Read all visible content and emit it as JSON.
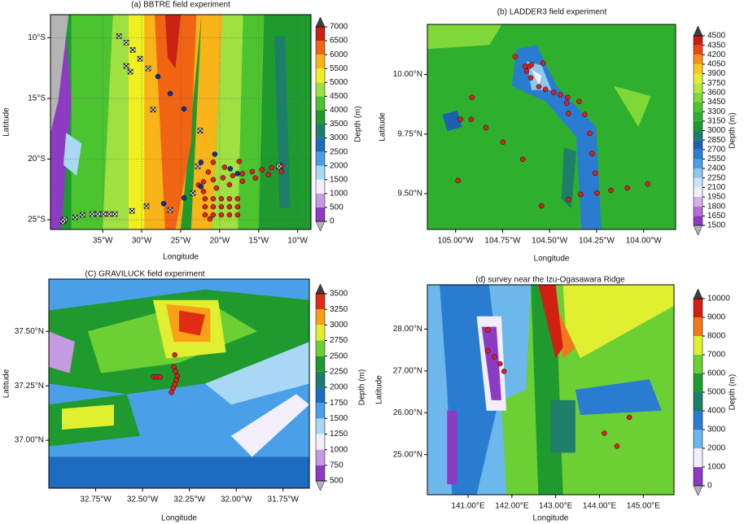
{
  "chart_data": [
    {
      "type": "contour-map",
      "title": "(a) BBTRE field experiment",
      "xlabel": "Longitude",
      "ylabel": "Latitude",
      "xlim": [
        -41.7,
        -8.3
      ],
      "ylim": [
        -25.8,
        -8.1
      ],
      "grid": true,
      "xticks": [
        {
          "value": -35,
          "label": "35°W"
        },
        {
          "value": -30,
          "label": "30°W"
        },
        {
          "value": -25,
          "label": "25°W"
        },
        {
          "value": -20,
          "label": "20°W"
        },
        {
          "value": -15,
          "label": "15°W"
        },
        {
          "value": -10,
          "label": "10°W"
        }
      ],
      "yticks": [
        {
          "value": -10,
          "label": "10°S"
        },
        {
          "value": -15,
          "label": "15°S"
        },
        {
          "value": -20,
          "label": "20°S"
        },
        {
          "value": -25,
          "label": "25°S"
        }
      ],
      "colorbar": {
        "label": "Depth (m)",
        "ticks": [
          0,
          500,
          1000,
          1500,
          2000,
          2500,
          3000,
          3500,
          4000,
          4500,
          5000,
          5500,
          6000,
          6500,
          7000
        ],
        "colors": [
          "#8e3bc4",
          "#c49ae0",
          "#f2eefa",
          "#a8d8f4",
          "#4aa0e8",
          "#1e6cc0",
          "#1d7e6a",
          "#1e9a2e",
          "#4cc430",
          "#a0e040",
          "#f0f020",
          "#f8b418",
          "#f06414",
          "#c82212"
        ],
        "under": "#b4b4b4",
        "over": "#404040"
      },
      "stations": [
        {
          "marker": "circle",
          "color": "#e02020",
          "lon": [
            -22.08,
            -20.83,
            -19.58,
            -18.33,
            -17.08,
            -15.83,
            -14.58,
            -13.33,
            -12.08,
            -22.08,
            -20.42,
            -18.75,
            -17.08,
            -15.42,
            -13.75,
            -12.08,
            -21.88,
            -20.83,
            -19.79,
            -18.75,
            -17.71,
            -21.88,
            -20.83,
            -19.79,
            -18.75,
            -17.71,
            -21.88,
            -20.83,
            -19.79,
            -18.75,
            -17.71,
            -20.83,
            -19.38,
            -17.5,
            -21.46,
            -22.71,
            -21.25
          ],
          "lat": [
            -21.87,
            -21.7,
            -21.54,
            -21.37,
            -21.21,
            -21.04,
            -20.88,
            -20.71,
            -20.55,
            -22.67,
            -22.39,
            -22.11,
            -21.83,
            -21.56,
            -21.28,
            -21.0,
            -23.27,
            -23.27,
            -23.27,
            -23.27,
            -23.27,
            -23.93,
            -23.93,
            -23.93,
            -23.93,
            -23.93,
            -24.6,
            -24.6,
            -24.6,
            -24.6,
            -24.6,
            -20.27,
            -20.67,
            -20.2,
            -21.07,
            -22.13,
            -24.93
          ]
        },
        {
          "marker": "circle",
          "color": "#1030a0",
          "lon": [
            -27.92,
            -26.35,
            -24.58,
            -20.63,
            -22.4,
            -18.65,
            -22.4,
            -24.58,
            -27.19,
            -17.71
          ],
          "lat": [
            -13.2,
            -14.6,
            -15.87,
            -19.6,
            -20.27,
            -20.8,
            -22.27,
            -23.2,
            -23.67,
            -21.2
          ]
        },
        {
          "marker": "cross",
          "color": "#ffffff",
          "lon": [
            -32.92,
            -31.98,
            -31.15,
            -30.21,
            -29.17,
            -31.98,
            -31.46,
            -28.54,
            -22.5,
            -22.81,
            -23.44,
            -26.35,
            -29.38,
            -31.25,
            -38.54,
            -39.9,
            -37.6,
            -36.35,
            -35.63,
            -34.9,
            -34.17,
            -33.44,
            -40.1,
            -12.4
          ],
          "lat": [
            -9.87,
            -10.4,
            -11.0,
            -11.73,
            -12.53,
            -12.33,
            -12.8,
            -15.93,
            -17.67,
            -20.6,
            -22.8,
            -24.2,
            -23.87,
            -24.27,
            -24.8,
            -25.0,
            -24.6,
            -24.53,
            -24.53,
            -24.53,
            -24.53,
            -24.53,
            -25.13,
            -20.6
          ]
        }
      ]
    },
    {
      "type": "contour-map",
      "title": "(b) LADDER3 field experiment",
      "xlabel": "Longitude",
      "ylabel": "Latitude",
      "xlim": [
        -105.15,
        -103.83
      ],
      "ylim": [
        9.35,
        10.21
      ],
      "grid": false,
      "xticks": [
        {
          "value": -105,
          "label": "105.00°W"
        },
        {
          "value": -104.75,
          "label": "104.75°W"
        },
        {
          "value": -104.5,
          "label": "104.50°W"
        },
        {
          "value": -104.25,
          "label": "104.25°W"
        },
        {
          "value": -104,
          "label": "104.00°W"
        }
      ],
      "yticks": [
        {
          "value": 10,
          "label": "10.00°N"
        },
        {
          "value": 9.75,
          "label": "9.75°N"
        },
        {
          "value": 9.5,
          "label": "9.50°N"
        }
      ],
      "colorbar": {
        "label": "Depth (m)",
        "ticks": [
          1500,
          1650,
          1800,
          1950,
          2100,
          2250,
          2400,
          2550,
          2700,
          2850,
          3000,
          3150,
          3300,
          3450,
          3600,
          3750,
          3900,
          4050,
          4200,
          4350,
          4500
        ],
        "colors": [
          "#8e3bc4",
          "#b070d4",
          "#d4b0e8",
          "#f2eefa",
          "#c8e6f8",
          "#8cc8f0",
          "#4aa0e8",
          "#2a7cd0",
          "#1e60b0",
          "#1d7e6a",
          "#1e9a2e",
          "#2eb02e",
          "#4cc430",
          "#80d838",
          "#b4e840",
          "#e6f030",
          "#f8c820",
          "#f89018",
          "#e84a14",
          "#c81e12"
        ],
        "under": "#b4b4b4",
        "over": "#404040"
      },
      "stations": [
        {
          "marker": "circle",
          "color": "#e02020",
          "lon": [
            -104.683,
            -104.63,
            -104.609,
            -104.596,
            -104.535,
            -104.622,
            -104.6,
            -104.557,
            -104.522,
            -104.478,
            -104.443,
            -104.404,
            -104.409,
            -104.343,
            -104.4,
            -104.313,
            -104.287,
            -104.274,
            -104.257,
            -104.248,
            -104.913,
            -104.974,
            -104.917,
            -104.839,
            -104.748,
            -104.643,
            -104.987,
            -104.543,
            -104.4,
            -104.335,
            -104.174,
            -104.087,
            -103.978
          ],
          "lat": [
            10.075,
            10.034,
            10.034,
            10.041,
            10.048,
            10.014,
            9.986,
            9.949,
            9.938,
            9.925,
            9.914,
            9.904,
            9.88,
            9.887,
            9.836,
            9.832,
            9.753,
            9.668,
            9.586,
            9.503,
            9.904,
            9.812,
            9.812,
            9.777,
            9.716,
            9.644,
            9.555,
            9.449,
            9.476,
            9.497,
            9.514,
            9.524,
            9.541
          ]
        }
      ]
    },
    {
      "type": "contour-map",
      "title": "(C) GRAVILUCK field experiment",
      "xlabel": "Longitude",
      "ylabel": "Latitude",
      "xlim": [
        -33.0,
        -31.61
      ],
      "ylim": [
        36.78,
        37.74
      ],
      "grid": false,
      "xticks": [
        {
          "value": -32.75,
          "label": "32.75°W"
        },
        {
          "value": -32.5,
          "label": "32.50°W"
        },
        {
          "value": -32.25,
          "label": "32.25°W"
        },
        {
          "value": -32,
          "label": "32.00°W"
        },
        {
          "value": -31.75,
          "label": "31.75°W"
        }
      ],
      "yticks": [
        {
          "value": 37.5,
          "label": "37.50°N"
        },
        {
          "value": 37.25,
          "label": "37.25°N"
        },
        {
          "value": 37,
          "label": "37.00°N"
        }
      ],
      "colorbar": {
        "label": "Depth (m)",
        "ticks": [
          500,
          750,
          1000,
          1250,
          1500,
          1750,
          2000,
          2250,
          2500,
          2750,
          3000,
          3250,
          3500
        ],
        "colors": [
          "#8e3bc4",
          "#c49ae0",
          "#f2eefa",
          "#a8d8f4",
          "#4aa0e8",
          "#1e6cc0",
          "#1d7e6a",
          "#1e9a2e",
          "#6cd034",
          "#e0f030",
          "#f8a018",
          "#e02c12"
        ],
        "under": "#b4b4b4",
        "over": "#404040"
      },
      "stations": [
        {
          "marker": "circle",
          "color": "#e02020",
          "lon": [
            -32.328,
            -32.333,
            -32.324,
            -32.315,
            -32.32,
            -32.328,
            -32.337,
            -32.346,
            -32.441,
            -32.424,
            -32.407
          ],
          "lat": [
            37.392,
            37.336,
            37.317,
            37.295,
            37.276,
            37.257,
            37.239,
            37.22,
            37.291,
            37.291,
            37.291
          ]
        }
      ]
    },
    {
      "type": "contour-map",
      "title": "(d) survey near the Izu-Ogasawara Ridge",
      "xlabel": "Longitude",
      "ylabel": "Latitude",
      "xlim": [
        140.07,
        145.7
      ],
      "ylim": [
        24.04,
        29.06
      ],
      "grid": false,
      "xticks": [
        {
          "value": 141,
          "label": "141.00°E"
        },
        {
          "value": 142,
          "label": "142.00°E"
        },
        {
          "value": 143,
          "label": "143.00°E"
        },
        {
          "value": 144,
          "label": "144.00°E"
        },
        {
          "value": 145,
          "label": "145.00°E"
        }
      ],
      "yticks": [
        {
          "value": 28,
          "label": "28.00°N"
        },
        {
          "value": 27,
          "label": "27.00°N"
        },
        {
          "value": 26,
          "label": "26.00°N"
        },
        {
          "value": 25,
          "label": "25.00°N"
        }
      ],
      "colorbar": {
        "label": "Depth (m)",
        "ticks": [
          0,
          1000,
          2000,
          3000,
          4000,
          5000,
          6000,
          7000,
          8000,
          9000,
          10000
        ],
        "colors": [
          "#8e3bc4",
          "#f2eefa",
          "#6cb8ec",
          "#2a7cd0",
          "#1d7e6a",
          "#1e9a2e",
          "#6cd034",
          "#e0f030",
          "#f07818",
          "#d02012"
        ],
        "under": "#b4b4b4",
        "over": "#404040"
      },
      "stations": [
        {
          "marker": "circle",
          "color": "#e02020",
          "lon": [
            141.45,
            141.45,
            141.6,
            141.73,
            141.82,
            144.68,
            144.11,
            144.4
          ],
          "lat": [
            27.98,
            27.48,
            27.34,
            27.17,
            26.99,
            25.89,
            25.51,
            25.2
          ]
        }
      ]
    }
  ]
}
